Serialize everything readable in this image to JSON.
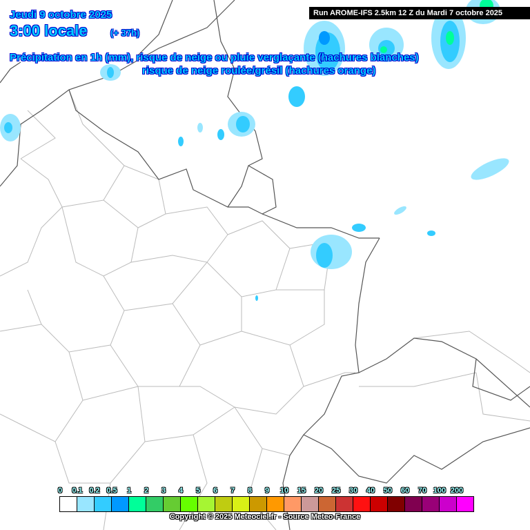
{
  "header": {
    "date": "Jeudi 9 octobre 2025",
    "hour": "3:00 locale",
    "lead": "(+ 37h)",
    "desc_line1": "Précipitation en 1h (mm), risque de neige ou pluie verglaçante (hachures blanches)",
    "desc_line2": "risque de neige roulée/grésil (hachures orange)",
    "run": "Run AROME-IFS 2.5km 12 Z du Mardi 7 octobre 2025"
  },
  "legend": {
    "labels": [
      "0",
      "0.1",
      "0.2",
      "0.5",
      "1",
      "2",
      "3",
      "4",
      "5",
      "6",
      "7",
      "8",
      "9",
      "10",
      "15",
      "20",
      "25",
      "30",
      "40",
      "50",
      "60",
      "70",
      "100",
      "200"
    ],
    "colors": [
      "#ffffff",
      "#99e6ff",
      "#33ccff",
      "#0099ff",
      "#00ff99",
      "#33cc66",
      "#66cc33",
      "#66ff00",
      "#a6f533",
      "#bfcc11",
      "#d9f016",
      "#cc9900",
      "#ff9900",
      "#ff9966",
      "#cc9999",
      "#cc6633",
      "#cc3333",
      "#ff1111",
      "#cc0000",
      "#800000",
      "#800050",
      "#990077",
      "#cc00cc",
      "#ff00ff"
    ]
  },
  "copyright": "Copyright © 2025 Meteociel.fr - Source Meteo-France"
}
